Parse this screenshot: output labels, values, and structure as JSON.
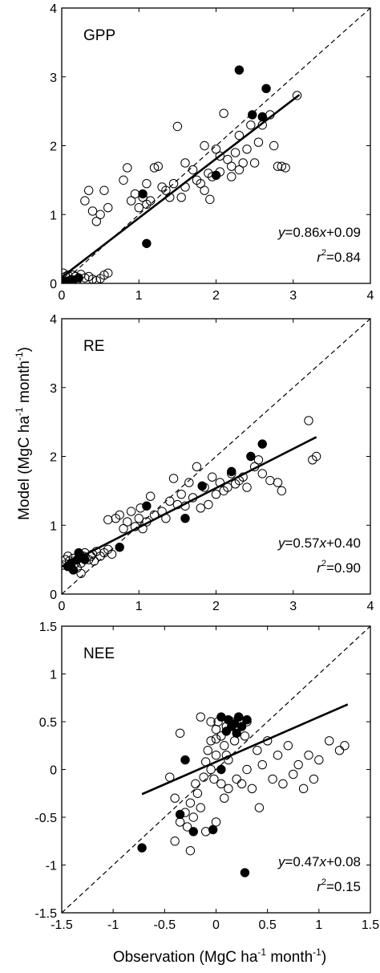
{
  "ylabel": "Model (MgC ha-1 month-1)",
  "xlabel": "Observation (MgC ha-1 month-1)",
  "chart_data": [
    {
      "type": "scatter",
      "title": "GPP",
      "xlim": [
        0,
        4
      ],
      "ylim": [
        0,
        4
      ],
      "xticks": [
        "0",
        "1",
        "2",
        "3",
        "4"
      ],
      "yticks": [
        "0",
        "1",
        "2",
        "3",
        "4"
      ],
      "equation": "y=0.86x+0.09",
      "r2": "r2=0.84",
      "fit": {
        "slope": 0.86,
        "intercept": 0.09,
        "x_range": [
          0.0,
          3.08
        ]
      },
      "one_to_one": true,
      "series": [
        {
          "marker": "filled",
          "points": [
            [
              0.02,
              0.02
            ],
            [
              0.05,
              0.03
            ],
            [
              0.08,
              0.02
            ],
            [
              0.15,
              0.05
            ],
            [
              0.22,
              0.08
            ],
            [
              1.05,
              1.3
            ],
            [
              1.1,
              0.58
            ],
            [
              2.0,
              1.57
            ],
            [
              2.3,
              3.1
            ],
            [
              2.47,
              2.45
            ],
            [
              2.6,
              2.42
            ],
            [
              2.65,
              2.83
            ]
          ]
        },
        {
          "marker": "open",
          "points": [
            [
              0.0,
              0.02
            ],
            [
              0.02,
              0.15
            ],
            [
              0.05,
              0.1
            ],
            [
              0.08,
              0.12
            ],
            [
              0.1,
              0.04
            ],
            [
              0.15,
              0.12
            ],
            [
              0.18,
              0.1
            ],
            [
              0.2,
              0.05
            ],
            [
              0.25,
              0.13
            ],
            [
              0.3,
              0.08
            ],
            [
              0.35,
              0.1
            ],
            [
              0.4,
              0.06
            ],
            [
              0.45,
              0.04
            ],
            [
              0.5,
              0.07
            ],
            [
              0.55,
              0.12
            ],
            [
              0.6,
              0.15
            ],
            [
              0.3,
              1.2
            ],
            [
              0.35,
              1.35
            ],
            [
              0.4,
              1.05
            ],
            [
              0.45,
              0.9
            ],
            [
              0.5,
              1.0
            ],
            [
              0.55,
              1.35
            ],
            [
              0.6,
              1.1
            ],
            [
              0.8,
              1.5
            ],
            [
              0.85,
              1.68
            ],
            [
              0.9,
              1.2
            ],
            [
              0.95,
              1.3
            ],
            [
              1.0,
              1.1
            ],
            [
              1.05,
              1.25
            ],
            [
              1.1,
              1.15
            ],
            [
              1.1,
              1.45
            ],
            [
              1.15,
              1.2
            ],
            [
              1.2,
              1.68
            ],
            [
              1.25,
              1.7
            ],
            [
              1.3,
              1.4
            ],
            [
              1.35,
              1.35
            ],
            [
              1.4,
              1.25
            ],
            [
              1.45,
              1.45
            ],
            [
              1.5,
              2.28
            ],
            [
              1.55,
              1.25
            ],
            [
              1.6,
              1.4
            ],
            [
              1.7,
              1.65
            ],
            [
              1.75,
              1.5
            ],
            [
              1.8,
              1.45
            ],
            [
              1.85,
              1.35
            ],
            [
              1.9,
              1.6
            ],
            [
              1.92,
              1.22
            ],
            [
              1.95,
              1.55
            ],
            [
              2.0,
              1.95
            ],
            [
              2.05,
              1.85
            ],
            [
              2.05,
              1.62
            ],
            [
              2.1,
              2.47
            ],
            [
              2.15,
              1.8
            ],
            [
              2.2,
              1.55
            ],
            [
              2.25,
              1.9
            ],
            [
              2.3,
              1.65
            ],
            [
              2.35,
              1.75
            ],
            [
              2.4,
              1.95
            ],
            [
              2.45,
              2.3
            ],
            [
              2.5,
              1.75
            ],
            [
              2.55,
              2.05
            ],
            [
              2.6,
              2.3
            ],
            [
              2.7,
              2.45
            ],
            [
              2.75,
              2.0
            ],
            [
              2.8,
              1.7
            ],
            [
              2.85,
              1.7
            ],
            [
              2.9,
              1.68
            ],
            [
              3.05,
              2.73
            ],
            [
              1.85,
              2.0
            ],
            [
              2.3,
              2.15
            ],
            [
              2.2,
              1.7
            ],
            [
              1.6,
              1.75
            ]
          ]
        }
      ]
    },
    {
      "type": "scatter",
      "title": "RE",
      "xlim": [
        0,
        4
      ],
      "ylim": [
        0,
        4
      ],
      "xticks": [
        "0",
        "1",
        "2",
        "3",
        "4"
      ],
      "yticks": [
        "0",
        "1",
        "2",
        "3",
        "4"
      ],
      "equation": "y=0.57x+0.40",
      "r2": "r2=0.90",
      "fit": {
        "slope": 0.57,
        "intercept": 0.4,
        "x_range": [
          0.0,
          3.3
        ]
      },
      "one_to_one": true,
      "series": [
        {
          "marker": "filled",
          "points": [
            [
              0.08,
              0.4
            ],
            [
              0.12,
              0.45
            ],
            [
              0.15,
              0.35
            ],
            [
              0.2,
              0.5
            ],
            [
              0.22,
              0.6
            ],
            [
              0.25,
              0.55
            ],
            [
              0.3,
              0.5
            ],
            [
              0.75,
              0.68
            ],
            [
              1.1,
              1.28
            ],
            [
              1.6,
              1.1
            ],
            [
              1.82,
              1.57
            ],
            [
              2.2,
              1.78
            ],
            [
              2.45,
              2.0
            ],
            [
              2.6,
              2.18
            ]
          ]
        },
        {
          "marker": "open",
          "points": [
            [
              0.02,
              0.42
            ],
            [
              0.05,
              0.5
            ],
            [
              0.08,
              0.55
            ],
            [
              0.1,
              0.48
            ],
            [
              0.12,
              0.42
            ],
            [
              0.15,
              0.52
            ],
            [
              0.18,
              0.45
            ],
            [
              0.2,
              0.38
            ],
            [
              0.25,
              0.45
            ],
            [
              0.28,
              0.55
            ],
            [
              0.3,
              0.6
            ],
            [
              0.35,
              0.5
            ],
            [
              0.38,
              0.55
            ],
            [
              0.4,
              0.58
            ],
            [
              0.42,
              0.48
            ],
            [
              0.45,
              0.62
            ],
            [
              0.5,
              0.55
            ],
            [
              0.55,
              0.6
            ],
            [
              0.6,
              0.65
            ],
            [
              0.65,
              0.58
            ],
            [
              0.25,
              0.3
            ],
            [
              0.6,
              1.08
            ],
            [
              0.7,
              1.1
            ],
            [
              0.75,
              1.15
            ],
            [
              0.8,
              0.95
            ],
            [
              0.85,
              1.05
            ],
            [
              0.9,
              1.2
            ],
            [
              0.95,
              0.98
            ],
            [
              1.0,
              1.1
            ],
            [
              1.02,
              1.25
            ],
            [
              1.05,
              0.95
            ],
            [
              1.1,
              1.05
            ],
            [
              1.15,
              1.42
            ],
            [
              1.2,
              1.15
            ],
            [
              1.3,
              1.2
            ],
            [
              1.35,
              1.1
            ],
            [
              1.4,
              1.35
            ],
            [
              1.45,
              1.68
            ],
            [
              1.5,
              1.3
            ],
            [
              1.55,
              1.45
            ],
            [
              1.6,
              1.28
            ],
            [
              1.65,
              1.62
            ],
            [
              1.7,
              1.4
            ],
            [
              1.75,
              1.85
            ],
            [
              1.8,
              1.25
            ],
            [
              1.85,
              1.55
            ],
            [
              1.9,
              1.3
            ],
            [
              1.95,
              1.7
            ],
            [
              2.0,
              1.45
            ],
            [
              2.05,
              1.62
            ],
            [
              2.1,
              1.5
            ],
            [
              2.15,
              1.55
            ],
            [
              2.2,
              1.75
            ],
            [
              2.25,
              1.6
            ],
            [
              2.3,
              1.65
            ],
            [
              2.35,
              1.7
            ],
            [
              2.4,
              1.55
            ],
            [
              2.5,
              1.85
            ],
            [
              2.55,
              1.95
            ],
            [
              2.6,
              1.75
            ],
            [
              2.7,
              1.65
            ],
            [
              2.8,
              1.62
            ],
            [
              2.85,
              1.5
            ],
            [
              3.2,
              2.52
            ],
            [
              3.25,
              1.95
            ],
            [
              3.3,
              2.0
            ]
          ]
        }
      ]
    },
    {
      "type": "scatter",
      "title": "NEE",
      "xlim": [
        -1.5,
        1.5
      ],
      "ylim": [
        -1.5,
        1.5
      ],
      "xticks": [
        "-1.5",
        "-1",
        "-0.5",
        "0",
        "0.5",
        "1",
        "1.5"
      ],
      "yticks": [
        "-1.5",
        "-1",
        "-0.5",
        "0",
        "0.5",
        "1",
        "1.5"
      ],
      "equation": "y=0.47x+0.08",
      "r2": "r2=0.15",
      "fit": {
        "slope": 0.47,
        "intercept": 0.08,
        "x_range": [
          -0.72,
          1.28
        ]
      },
      "one_to_one": true,
      "series": [
        {
          "marker": "filled",
          "points": [
            [
              -0.72,
              -0.82
            ],
            [
              -0.35,
              -0.47
            ],
            [
              -0.3,
              0.1
            ],
            [
              -0.22,
              -0.65
            ],
            [
              -0.03,
              -0.63
            ],
            [
              0.05,
              0.55
            ],
            [
              0.05,
              0.0
            ],
            [
              0.1,
              0.4
            ],
            [
              0.12,
              0.52
            ],
            [
              0.15,
              0.45
            ],
            [
              0.18,
              0.48
            ],
            [
              0.2,
              0.38
            ],
            [
              0.22,
              0.55
            ],
            [
              0.25,
              0.45
            ],
            [
              0.3,
              0.52
            ],
            [
              0.28,
              -1.08
            ]
          ]
        },
        {
          "marker": "open",
          "points": [
            [
              -0.45,
              -0.08
            ],
            [
              -0.4,
              -0.3
            ],
            [
              -0.4,
              -0.75
            ],
            [
              -0.35,
              0.38
            ],
            [
              -0.35,
              -0.55
            ],
            [
              -0.3,
              -0.45
            ],
            [
              -0.28,
              -0.6
            ],
            [
              -0.25,
              -0.85
            ],
            [
              -0.25,
              -0.35
            ],
            [
              -0.22,
              -0.5
            ],
            [
              -0.2,
              -0.15
            ],
            [
              -0.18,
              -0.25
            ],
            [
              -0.15,
              -0.4
            ],
            [
              -0.12,
              -0.08
            ],
            [
              -0.1,
              0.08
            ],
            [
              -0.08,
              0.2
            ],
            [
              -0.05,
              0.3
            ],
            [
              -0.05,
              0.5
            ],
            [
              -0.02,
              -0.1
            ],
            [
              0.0,
              0.15
            ],
            [
              0.0,
              0.42
            ],
            [
              0.02,
              0.5
            ],
            [
              0.05,
              0.35
            ],
            [
              0.05,
              -0.15
            ],
            [
              0.08,
              0.25
            ],
            [
              0.08,
              -0.3
            ],
            [
              0.1,
              0.45
            ],
            [
              0.12,
              0.1
            ],
            [
              0.12,
              -0.2
            ],
            [
              0.15,
              0.5
            ],
            [
              0.18,
              0.3
            ],
            [
              0.2,
              -0.1
            ],
            [
              0.22,
              0.55
            ],
            [
              0.25,
              -0.15
            ],
            [
              0.28,
              0.35
            ],
            [
              0.3,
              0.0
            ],
            [
              0.35,
              -0.2
            ],
            [
              0.4,
              0.2
            ],
            [
              0.42,
              -0.4
            ],
            [
              0.45,
              0.05
            ],
            [
              0.5,
              0.3
            ],
            [
              0.55,
              -0.1
            ],
            [
              0.6,
              0.15
            ],
            [
              0.65,
              -0.15
            ],
            [
              0.7,
              0.25
            ],
            [
              0.75,
              -0.05
            ],
            [
              0.8,
              0.05
            ],
            [
              0.85,
              -0.2
            ],
            [
              0.9,
              0.15
            ],
            [
              0.95,
              -0.1
            ],
            [
              1.0,
              0.1
            ],
            [
              1.1,
              0.3
            ],
            [
              1.2,
              0.2
            ],
            [
              1.25,
              0.25
            ],
            [
              -0.1,
              -0.65
            ],
            [
              0.0,
              -0.55
            ],
            [
              -0.15,
              0.55
            ],
            [
              0.0,
              0.32
            ],
            [
              0.1,
              0.15
            ],
            [
              0.3,
              0.5
            ],
            [
              -0.05,
              0.0
            ]
          ]
        }
      ]
    }
  ]
}
